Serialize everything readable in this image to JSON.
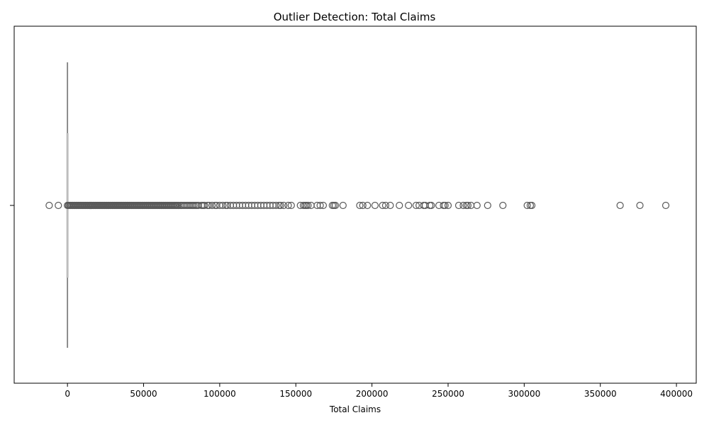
{
  "chart_data": {
    "type": "boxplot",
    "title": "Outlier Detection: Total Claims",
    "xlabel": "Total Claims",
    "ylabel": "",
    "xlim": [
      -35000,
      413000
    ],
    "xticks": [
      0,
      50000,
      100000,
      150000,
      200000,
      250000,
      300000,
      350000,
      400000
    ],
    "xtick_labels": [
      "0",
      "50000",
      "100000",
      "150000",
      "200000",
      "250000",
      "300000",
      "350000",
      "400000"
    ],
    "orientation": "horizontal",
    "grid": false,
    "legend": "none",
    "box": {
      "whisker_low": 0,
      "q1": 0,
      "median": 0,
      "q3": 0,
      "whisker_high": 0
    },
    "outlier_color": "#595959",
    "box_color": "#808080",
    "dense_outlier_range": [
      0,
      73000
    ],
    "outliers": [
      -12000,
      -6000,
      74000,
      75000,
      76000,
      77000,
      78000,
      79000,
      80000,
      81000,
      82000,
      83000,
      84000,
      85000,
      86000,
      88000,
      89000,
      90000,
      92000,
      93000,
      95000,
      97000,
      98000,
      100000,
      102000,
      104000,
      105000,
      107000,
      109000,
      111000,
      113000,
      115000,
      117000,
      119000,
      121000,
      123000,
      125000,
      127000,
      129000,
      131000,
      133000,
      135000,
      137000,
      139000,
      140000,
      142000,
      145000,
      147000,
      153000,
      155000,
      156000,
      157000,
      158000,
      160000,
      164000,
      166000,
      168000,
      174000,
      175000,
      176000,
      181000,
      192000,
      194000,
      197000,
      202000,
      207000,
      209000,
      212000,
      218000,
      224000,
      229000,
      231000,
      234000,
      235000,
      238000,
      239000,
      244000,
      247000,
      248000,
      250000,
      257000,
      260000,
      262000,
      263000,
      265000,
      269000,
      276000,
      286000,
      302000,
      304000,
      305000,
      363000,
      376000,
      393000
    ]
  }
}
